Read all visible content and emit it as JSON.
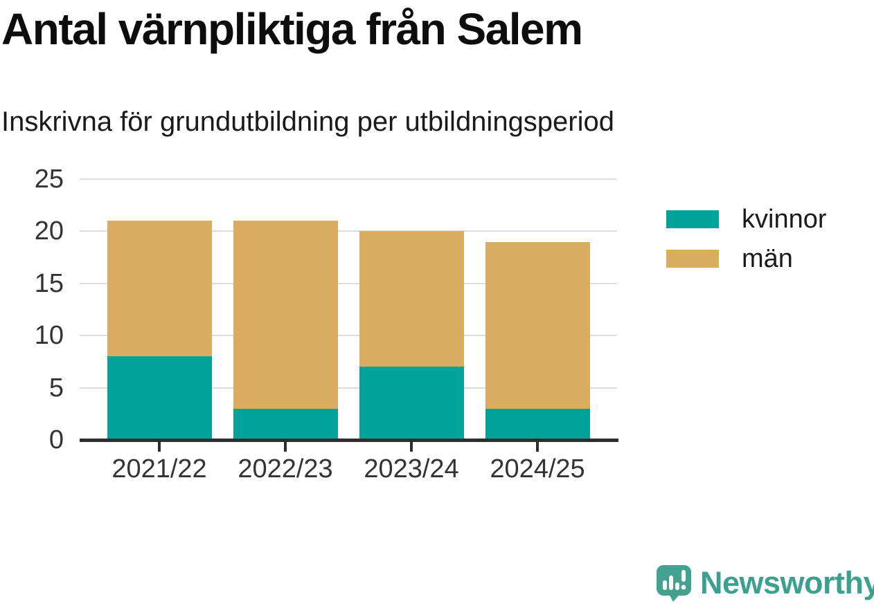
{
  "title": "Antal värnpliktiga från Salem",
  "subtitle": "Inskrivna för grundutbildning per utbildningsperiod",
  "chart_data": {
    "type": "bar",
    "stacked": true,
    "title": "Antal värnpliktiga från Salem",
    "subtitle": "Inskrivna för grundutbildning per utbildningsperiod",
    "categories": [
      "2021/22",
      "2022/23",
      "2023/24",
      "2024/25"
    ],
    "series": [
      {
        "name": "kvinnor",
        "color": "#00a39b",
        "values": [
          8,
          3,
          7,
          3
        ]
      },
      {
        "name": "män",
        "color": "#d9ac5f",
        "values": [
          13,
          18,
          13,
          16
        ]
      }
    ],
    "totals": [
      21,
      21,
      20,
      19
    ],
    "xlabel": "",
    "ylabel": "",
    "ylim": [
      0,
      25
    ],
    "yticks": [
      0,
      5,
      10,
      15,
      20,
      25
    ],
    "grid": true,
    "legend_position": "right"
  },
  "branding": {
    "logo_text": "Newsworthy",
    "brand_color": "#3ca08e"
  },
  "colors": {
    "grid": "#dcdcdc",
    "axis": "#2e2e2e",
    "tick_text": "#333333",
    "title_text": "#0d0d0d"
  }
}
